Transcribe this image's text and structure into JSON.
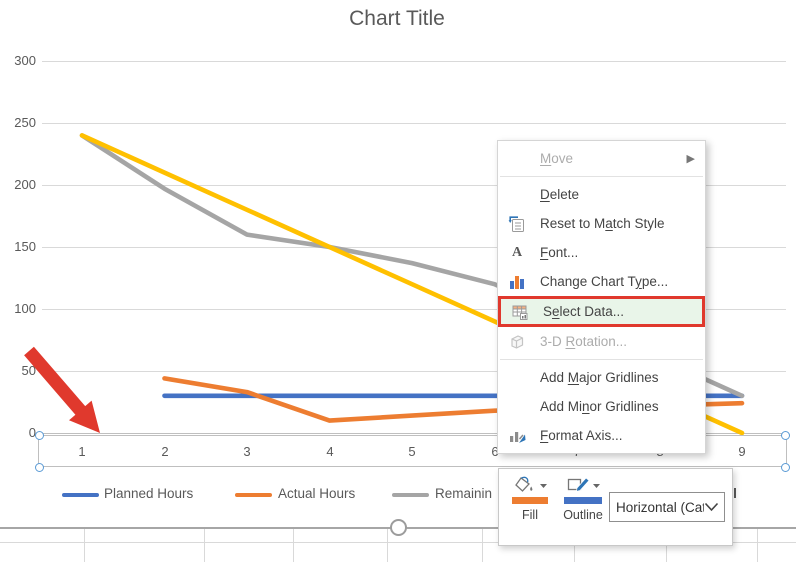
{
  "chart": {
    "title": "Chart Title",
    "legend_visible": [
      {
        "label": "Planned Hours",
        "color": "#4472C4"
      },
      {
        "label": "Actual Hours",
        "color": "#ED7D31"
      },
      {
        "label": "Remainin",
        "color": "#A5A5A5"
      }
    ]
  },
  "chart_data": {
    "type": "line",
    "title": "Chart Title",
    "categories": [
      1,
      2,
      3,
      4,
      5,
      6,
      7,
      8,
      9
    ],
    "x_tick_labels": [
      "1",
      "2",
      "3",
      "4",
      "5",
      "6",
      "7",
      "8",
      "9"
    ],
    "y_ticks": [
      0,
      50,
      100,
      150,
      200,
      250,
      300
    ],
    "ylim": [
      0,
      300
    ],
    "grid": "horizontal major gridlines",
    "legend_position": "bottom",
    "series": [
      {
        "name": "Planned Hours",
        "color": "#4472C4",
        "values": [
          null,
          30,
          30,
          30,
          30,
          30,
          30,
          30,
          30
        ]
      },
      {
        "name": "Actual Hours",
        "color": "#ED7D31",
        "values": [
          null,
          44,
          33,
          10,
          14,
          18,
          20,
          22,
          24
        ]
      },
      {
        "name": "Remainin",
        "color": "#A5A5A5",
        "values": [
          240,
          197,
          160,
          150,
          137,
          120,
          90,
          60,
          30
        ]
      },
      {
        "name": "",
        "legend_hidden_behind_toolbar": true,
        "color": "#FFC000",
        "values": [
          240,
          210,
          180,
          150,
          120,
          90,
          60,
          30,
          0
        ]
      }
    ]
  },
  "context_menu": {
    "items": [
      {
        "id": "move",
        "pre": "",
        "u": "M",
        "post": "ove",
        "disabled": true,
        "submenu": true,
        "icon": "",
        "sep_after": true
      },
      {
        "id": "delete",
        "pre": "",
        "u": "D",
        "post": "elete",
        "icon": ""
      },
      {
        "id": "reset-to-match-style",
        "pre": "Reset to M",
        "u": "a",
        "post": "tch Style",
        "icon": "reset-style-icon"
      },
      {
        "id": "font",
        "pre": "",
        "u": "F",
        "post": "ont...",
        "icon": "font-icon"
      },
      {
        "id": "change-chart-type",
        "pre": "Change Chart T",
        "u": "y",
        "post": "pe...",
        "icon": "chart-type-icon"
      },
      {
        "id": "select-data",
        "pre": "S",
        "u": "e",
        "post": "lect Data...",
        "icon": "select-data-icon",
        "highlighted": true
      },
      {
        "id": "3d-rotation",
        "pre": "3-D ",
        "u": "R",
        "post": "otation...",
        "disabled": true,
        "icon": "rotation-3d-icon",
        "sep_after": true
      },
      {
        "id": "add-major-gridlines",
        "pre": "Add ",
        "u": "M",
        "post": "ajor Gridlines",
        "icon": ""
      },
      {
        "id": "add-minor-gridlines",
        "pre": "Add Mi",
        "u": "n",
        "post": "or Gridlines",
        "icon": ""
      },
      {
        "id": "format-axis",
        "pre": "",
        "u": "F",
        "post": "ormat Axis...",
        "icon": "format-axis-icon"
      }
    ]
  },
  "mini_toolbar": {
    "fill_label": "Fill",
    "outline_label": "Outline",
    "fill_swatch_color": "#ED7D31",
    "outline_swatch_color": "#4472C4",
    "dropdown_value": "Horizontal (Cat"
  },
  "colors": {
    "highlight_green": "#E9F5E9",
    "annotation_red": "#E0392D",
    "gridline_gray": "#D9D9D9",
    "axis_text_gray": "#595959"
  }
}
